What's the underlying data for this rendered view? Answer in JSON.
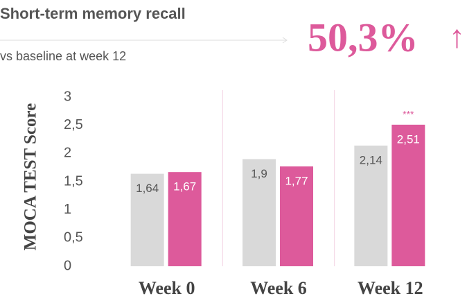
{
  "header": {
    "title": "Short-term memory recall",
    "subtitle": "vs baseline at week 12",
    "headline": "50,3%",
    "headline_arrow": "↑"
  },
  "chart_data": {
    "type": "bar",
    "y_label": "MOCA TEST Score",
    "categories": [
      "Week 0",
      "Week 6",
      "Week 12"
    ],
    "series": [
      {
        "color": "#d9d9d9",
        "values": [
          1.64,
          1.9,
          2.14
        ],
        "value_labels": [
          "1,64",
          "1,9",
          "2,14"
        ]
      },
      {
        "color": "#dd5a9b",
        "values": [
          1.67,
          1.77,
          2.51
        ],
        "value_labels": [
          "1,67",
          "1,77",
          "2,51"
        ]
      }
    ],
    "annotation": {
      "text": "***",
      "series": 1,
      "category": 2
    },
    "ylim": [
      0,
      3
    ],
    "yticks": [
      {
        "value": 0,
        "label": "0"
      },
      {
        "value": 0.5,
        "label": "0,5"
      },
      1,
      {
        "value": 1.5,
        "label": "1,5"
      },
      2,
      {
        "value": 2.5,
        "label": "2,5"
      },
      3
    ]
  }
}
